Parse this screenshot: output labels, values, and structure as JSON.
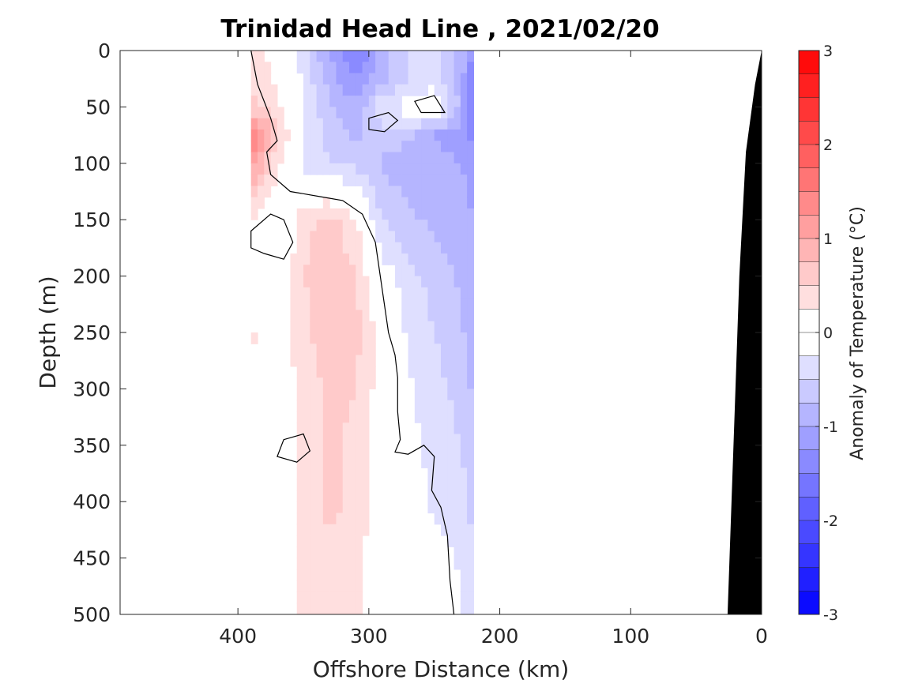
{
  "chart_data": {
    "type": "heatmap",
    "title": "Trinidad Head Line , 2021/02/20",
    "xlabel": "Offshore Distance (km)",
    "ylabel": "Depth (m)",
    "xlim": [
      490,
      0
    ],
    "ylim": [
      0,
      500
    ],
    "x_ticks": [
      400,
      300,
      200,
      100,
      0
    ],
    "x_tick_labels": [
      "400",
      "300",
      "200",
      "100",
      "0"
    ],
    "y_ticks": [
      0,
      50,
      100,
      150,
      200,
      250,
      300,
      350,
      400,
      450,
      500
    ],
    "y_tick_labels": [
      "0",
      "50",
      "100",
      "150",
      "200",
      "250",
      "300",
      "350",
      "400",
      "450",
      "500"
    ],
    "colorbar": {
      "label": "Anomaly of Temperature (°C)",
      "range": [
        -3,
        3
      ],
      "step": 0.25,
      "ticks": [
        3,
        2,
        1,
        0,
        -1,
        -2,
        -3
      ],
      "tick_labels": [
        "3",
        "2",
        "1",
        "0",
        "-1",
        "-2",
        "-3"
      ],
      "low_color": "#0000ff",
      "mid_color": "#ffffff",
      "high_color": "#ff0000"
    },
    "data_extent_km": [
      390,
      220
    ],
    "bathymetry_color": "#000000",
    "bathymetry": [
      [
        0,
        0
      ],
      [
        5,
        30
      ],
      [
        12,
        90
      ],
      [
        17,
        200
      ],
      [
        20,
        300
      ],
      [
        23,
        400
      ],
      [
        26,
        500
      ]
    ],
    "zero_contour": [
      [
        [
          390,
          0
        ],
        [
          385,
          30
        ],
        [
          375,
          60
        ],
        [
          370,
          80
        ],
        [
          378,
          90
        ],
        [
          375,
          110
        ],
        [
          360,
          125
        ],
        [
          335,
          130
        ],
        [
          320,
          133
        ],
        [
          305,
          145
        ],
        [
          295,
          170
        ],
        [
          290,
          210
        ],
        [
          285,
          250
        ],
        [
          280,
          270
        ],
        [
          278,
          290
        ],
        [
          278,
          320
        ],
        [
          276,
          345
        ],
        [
          280,
          356
        ],
        [
          270,
          358
        ],
        [
          258,
          350
        ],
        [
          250,
          360
        ],
        [
          252,
          390
        ],
        [
          245,
          405
        ],
        [
          240,
          430
        ],
        [
          238,
          470
        ],
        [
          235,
          500
        ]
      ],
      [
        [
          390,
          160
        ],
        [
          375,
          145
        ],
        [
          365,
          150
        ],
        [
          358,
          170
        ],
        [
          365,
          185
        ],
        [
          380,
          180
        ],
        [
          390,
          175
        ]
      ],
      [
        [
          350,
          340
        ],
        [
          365,
          345
        ],
        [
          370,
          360
        ],
        [
          355,
          365
        ],
        [
          345,
          355
        ]
      ],
      [
        [
          300,
          60
        ],
        [
          285,
          55
        ],
        [
          278,
          62
        ],
        [
          288,
          72
        ],
        [
          300,
          70
        ]
      ],
      [
        [
          265,
          45
        ],
        [
          250,
          40
        ],
        [
          242,
          55
        ],
        [
          260,
          55
        ]
      ]
    ],
    "anomaly_grid": {
      "x": [
        390,
        370,
        350,
        330,
        310,
        290,
        270,
        250,
        230,
        220
      ],
      "y": [
        0,
        25,
        50,
        75,
        100,
        150,
        200,
        250,
        300,
        350,
        400,
        450,
        500
      ],
      "values": [
        [
          0.4,
          0.1,
          -0.4,
          -1.0,
          -1.6,
          -0.9,
          -0.5,
          -0.4,
          -0.8,
          -1.3
        ],
        [
          0.4,
          0.2,
          -0.3,
          -0.9,
          -1.3,
          -0.8,
          -0.5,
          -0.4,
          -0.9,
          -1.5
        ],
        [
          0.6,
          0.3,
          -0.2,
          -0.7,
          -0.9,
          -0.3,
          -0.1,
          0.1,
          -0.8,
          -1.6
        ],
        [
          1.6,
          0.6,
          -0.3,
          -0.6,
          -0.8,
          -0.6,
          -0.7,
          -1.0,
          -1.2,
          -1.3
        ],
        [
          1.2,
          0.3,
          -0.3,
          -0.5,
          -0.6,
          -0.8,
          -0.9,
          -0.9,
          -1.0,
          -1.1
        ],
        [
          0.2,
          -0.1,
          0.4,
          0.6,
          0.3,
          -0.5,
          -0.7,
          -0.8,
          -0.9,
          -1.0
        ],
        [
          -0.1,
          -0.1,
          0.5,
          0.7,
          0.5,
          -0.1,
          -0.4,
          -0.6,
          -0.8,
          -0.9
        ],
        [
          0.3,
          0.1,
          0.4,
          0.7,
          0.6,
          0.1,
          -0.3,
          -0.5,
          -0.7,
          -0.9
        ],
        [
          0.1,
          0.1,
          0.3,
          0.6,
          0.5,
          0.1,
          -0.2,
          -0.4,
          -0.6,
          -0.8
        ],
        [
          0.0,
          -0.1,
          0.3,
          0.6,
          0.4,
          0.0,
          -0.2,
          -0.3,
          -0.5,
          -0.7
        ],
        [
          0.0,
          0.0,
          0.3,
          0.6,
          0.4,
          0.1,
          -0.1,
          -0.3,
          -0.4,
          -0.6
        ],
        [
          0.0,
          0.1,
          0.3,
          0.4,
          0.3,
          0.1,
          0.0,
          -0.1,
          -0.3,
          -0.5
        ],
        [
          0.0,
          0.1,
          0.3,
          0.4,
          0.3,
          0.1,
          0.0,
          -0.1,
          -0.2,
          -0.4
        ]
      ]
    }
  }
}
